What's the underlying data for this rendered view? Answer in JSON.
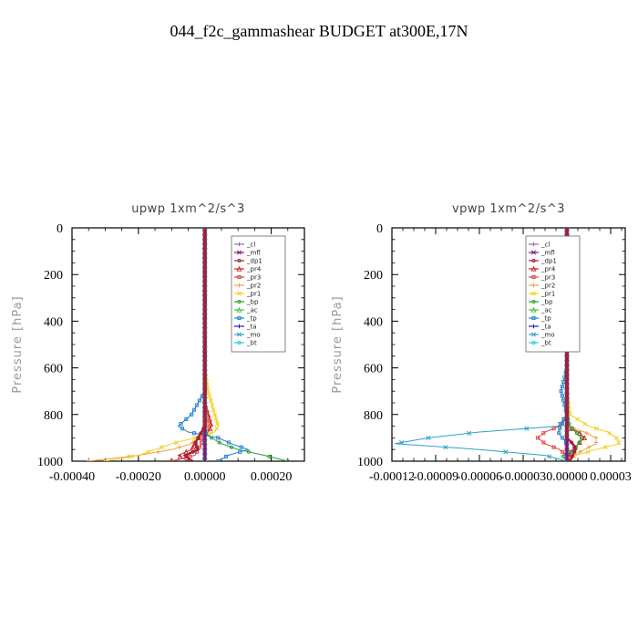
{
  "figure_title": "044_f2c_gammashear  BUDGET at300E,17N",
  "colors": {
    "cl": "#8a6aa8",
    "mfl": "#7a1a7a",
    "dp1": "#a0203a",
    "pr4": "#d02020",
    "pr3": "#e04040",
    "pr2": "#f0a040",
    "pr1": "#f0d020",
    "bp": "#2aa02a",
    "ac": "#40c040",
    "tp": "#2080d0",
    "ta": "#2020c0",
    "mo": "#30a0c8",
    "bt": "#20d0e0"
  },
  "chart_data": [
    {
      "type": "line",
      "title": "upwp   1xm^2/s^3",
      "ylabel": "Pressure  [hPa]",
      "xlim": [
        -0.0004,
        0.0003
      ],
      "ylim": [
        1000,
        0
      ],
      "xticks": [
        -0.0004,
        -0.0002,
        0.0,
        0.0002
      ],
      "xtick_labels": [
        "-0.00040",
        "-0.00020",
        "0.00000",
        "0.00020"
      ],
      "yticks": [
        0,
        200,
        400,
        600,
        800,
        1000
      ],
      "ytick_labels": [
        "0",
        "200",
        "400",
        "600",
        "800",
        "1000"
      ],
      "legend_placement": "top-right",
      "pressure": [
        0,
        100,
        200,
        300,
        400,
        500,
        600,
        700,
        750,
        800,
        850,
        875,
        900,
        925,
        950,
        975,
        1000
      ],
      "series": [
        {
          "name": "_cl",
          "key": "cl",
          "values": [
            0,
            0,
            0,
            0,
            0,
            0,
            0,
            0,
            0,
            0,
            0,
            0,
            0,
            0,
            0,
            0,
            0
          ]
        },
        {
          "name": "_mfl",
          "key": "mfl",
          "values": [
            0,
            0,
            0,
            0,
            0,
            0,
            0,
            0,
            0,
            0,
            0,
            0,
            0,
            0,
            0,
            0,
            0
          ]
        },
        {
          "name": "_dp1",
          "key": "dp1",
          "values": [
            0,
            0,
            0,
            0,
            0,
            0,
            0,
            0,
            0,
            0,
            0,
            -1e-05,
            -2e-05,
            -3e-05,
            -2e-05,
            -6e-05,
            -4e-05
          ]
        },
        {
          "name": "_pr4",
          "key": "pr4",
          "values": [
            0,
            0,
            0,
            0,
            0,
            0,
            0,
            0,
            0,
            1e-05,
            2e-05,
            1e-05,
            -2e-05,
            -3e-05,
            -4e-05,
            -8e-05,
            -5e-05
          ]
        },
        {
          "name": "_pr3",
          "key": "pr3",
          "values": [
            0,
            0,
            0,
            0,
            0,
            0,
            0,
            0,
            0,
            0,
            1e-05,
            0,
            -1e-05,
            -1e-05,
            -2e-05,
            -3e-05,
            -0.0001
          ]
        },
        {
          "name": "_pr2",
          "key": "pr2",
          "values": [
            0,
            0,
            0,
            0,
            0,
            0,
            0,
            0,
            0,
            0,
            1e-05,
            0,
            -2e-05,
            -4e-05,
            -0.0001,
            -0.0002,
            -0.00035
          ]
        },
        {
          "name": "_pr1",
          "key": "pr1",
          "values": [
            0,
            0,
            0,
            0,
            0,
            0,
            0,
            1e-05,
            2e-05,
            3e-05,
            4e-05,
            3e-05,
            -3e-05,
            -0.0001,
            -0.00015,
            -0.0002,
            -0.0003
          ]
        },
        {
          "name": "_bp",
          "key": "bp",
          "values": [
            0,
            0,
            0,
            0,
            0,
            0,
            0,
            0,
            0,
            0,
            0,
            0,
            2e-05,
            5e-05,
            0.0001,
            0.00018,
            0.00025
          ]
        },
        {
          "name": "_ac",
          "key": "ac",
          "values": [
            0,
            0,
            0,
            0,
            0,
            0,
            0,
            0,
            0,
            0,
            0,
            0,
            0,
            0,
            0,
            0,
            0
          ]
        },
        {
          "name": "_tp",
          "key": "tp",
          "values": [
            0,
            0,
            0,
            0,
            0,
            0,
            0,
            0,
            -2e-05,
            -4e-05,
            -8e-05,
            -5e-05,
            4e-05,
            8e-05,
            0.00013,
            7e-05,
            4e-05
          ]
        },
        {
          "name": "_ta",
          "key": "ta",
          "values": [
            0,
            0,
            0,
            0,
            0,
            0,
            0,
            0,
            0,
            0,
            0,
            0,
            0,
            0,
            0,
            0,
            0
          ]
        },
        {
          "name": "_mo",
          "key": "mo",
          "values": [
            0,
            0,
            0,
            0,
            0,
            0,
            0,
            0,
            0,
            0,
            0,
            0,
            0,
            0,
            0,
            0,
            0
          ]
        },
        {
          "name": "_bt",
          "key": "bt",
          "values": [
            0,
            0,
            0,
            0,
            0,
            0,
            0,
            0,
            0,
            0,
            0,
            0,
            0,
            0,
            0,
            0,
            0
          ]
        }
      ]
    },
    {
      "type": "line",
      "title": "vpwp   1xm^2/s^3",
      "ylabel": "Pressure  [hPa]",
      "xlim": [
        -0.00012,
        4e-05
      ],
      "ylim": [
        1000,
        0
      ],
      "xticks": [
        -0.00012,
        -9e-05,
        -6e-05,
        -3e-05,
        0.0,
        3e-05
      ],
      "xtick_labels": [
        "-0.00012",
        "-0.00009",
        "-0.00006",
        "-0.00003",
        "0.00000",
        "0.00003"
      ],
      "yticks": [
        0,
        200,
        400,
        600,
        800,
        1000
      ],
      "ytick_labels": [
        "0",
        "200",
        "400",
        "600",
        "800",
        "1000"
      ],
      "legend_placement": "top-right",
      "pressure": [
        0,
        100,
        150,
        175,
        200,
        225,
        250,
        275,
        300,
        400,
        600,
        700,
        800,
        850,
        875,
        900,
        925,
        950,
        975,
        1000
      ],
      "series": [
        {
          "name": "_cl",
          "key": "cl",
          "values": [
            0,
            0,
            0,
            0,
            0,
            0,
            0,
            0,
            0,
            0,
            0,
            0,
            0,
            0,
            0,
            0,
            0,
            0,
            0,
            0
          ]
        },
        {
          "name": "_mfl",
          "key": "mfl",
          "values": [
            0,
            0,
            0,
            0,
            0,
            0,
            0,
            0,
            0,
            0,
            0,
            0,
            0,
            0,
            0,
            0,
            0,
            0,
            0,
            0
          ]
        },
        {
          "name": "_dp1",
          "key": "dp1",
          "values": [
            0,
            0,
            0,
            0,
            0,
            0,
            0,
            0,
            0,
            0,
            0,
            0,
            0,
            0,
            0,
            0,
            4e-06,
            6e-06,
            4e-06,
            2e-06
          ]
        },
        {
          "name": "_pr4",
          "key": "pr4",
          "values": [
            0,
            0,
            0,
            0,
            0,
            0,
            0,
            0,
            0,
            0,
            0,
            0,
            0,
            0,
            8e-06,
            1.2e-05,
            8e-06,
            4e-06,
            2e-06,
            0
          ]
        },
        {
          "name": "_pr3",
          "key": "pr3",
          "values": [
            0,
            0,
            0,
            0,
            0,
            0,
            0,
            0,
            0,
            0,
            0,
            0,
            0,
            -5e-06,
            -1.5e-05,
            -2e-05,
            -1.5e-05,
            -5e-06,
            0,
            0
          ]
        },
        {
          "name": "_pr2",
          "key": "pr2",
          "values": [
            0,
            0,
            0,
            0,
            0,
            0,
            0,
            0,
            0,
            0,
            0,
            0,
            0,
            0,
            1.2e-05,
            2e-05,
            2e-05,
            1.2e-05,
            5e-06,
            0
          ]
        },
        {
          "name": "_pr1",
          "key": "pr1",
          "values": [
            0,
            0,
            -5e-06,
            -1.2e-05,
            -1.5e-05,
            -8e-06,
            0,
            0,
            0,
            0,
            0,
            0,
            2e-06,
            1.5e-05,
            2.8e-05,
            3.4e-05,
            3.6e-05,
            2e-05,
            6e-06,
            0
          ]
        },
        {
          "name": "_bp",
          "key": "bp",
          "values": [
            0,
            0,
            0,
            0,
            0,
            0,
            0,
            0,
            0,
            0,
            0,
            0,
            0,
            2e-06,
            6e-06,
            1e-05,
            8e-06,
            5e-06,
            -3e-06,
            0
          ]
        },
        {
          "name": "_ac",
          "key": "ac",
          "values": [
            0,
            0,
            0,
            0,
            0,
            -4e-06,
            -6e-06,
            -3e-06,
            0,
            0,
            0,
            0,
            0,
            0,
            0,
            0,
            0,
            0,
            0,
            0
          ]
        },
        {
          "name": "_tp",
          "key": "tp",
          "values": [
            0,
            0,
            0,
            0,
            -5e-06,
            -1.5e-05,
            -2.4e-05,
            -1e-05,
            0,
            0,
            0,
            -4e-06,
            0,
            -4e-06,
            -6e-06,
            -3e-06,
            0,
            0,
            0,
            0
          ]
        },
        {
          "name": "_ta",
          "key": "ta",
          "values": [
            0,
            0,
            0,
            0,
            0,
            0,
            0,
            0,
            0,
            0,
            0,
            0,
            0,
            0,
            0,
            0,
            0,
            0,
            0,
            0
          ]
        },
        {
          "name": "_mo",
          "key": "mo",
          "values": [
            0,
            0,
            0,
            0,
            0,
            0,
            0,
            0,
            0,
            0,
            0,
            0,
            0,
            -6e-06,
            -6e-05,
            -9.5e-05,
            -0.000118,
            -6e-05,
            -1.5e-05,
            0
          ]
        },
        {
          "name": "_bt",
          "key": "bt",
          "values": [
            0,
            0,
            0,
            0,
            0,
            0,
            0,
            0,
            0,
            0,
            0,
            0,
            0,
            0,
            0,
            0,
            0,
            0,
            0,
            0
          ]
        }
      ]
    }
  ]
}
